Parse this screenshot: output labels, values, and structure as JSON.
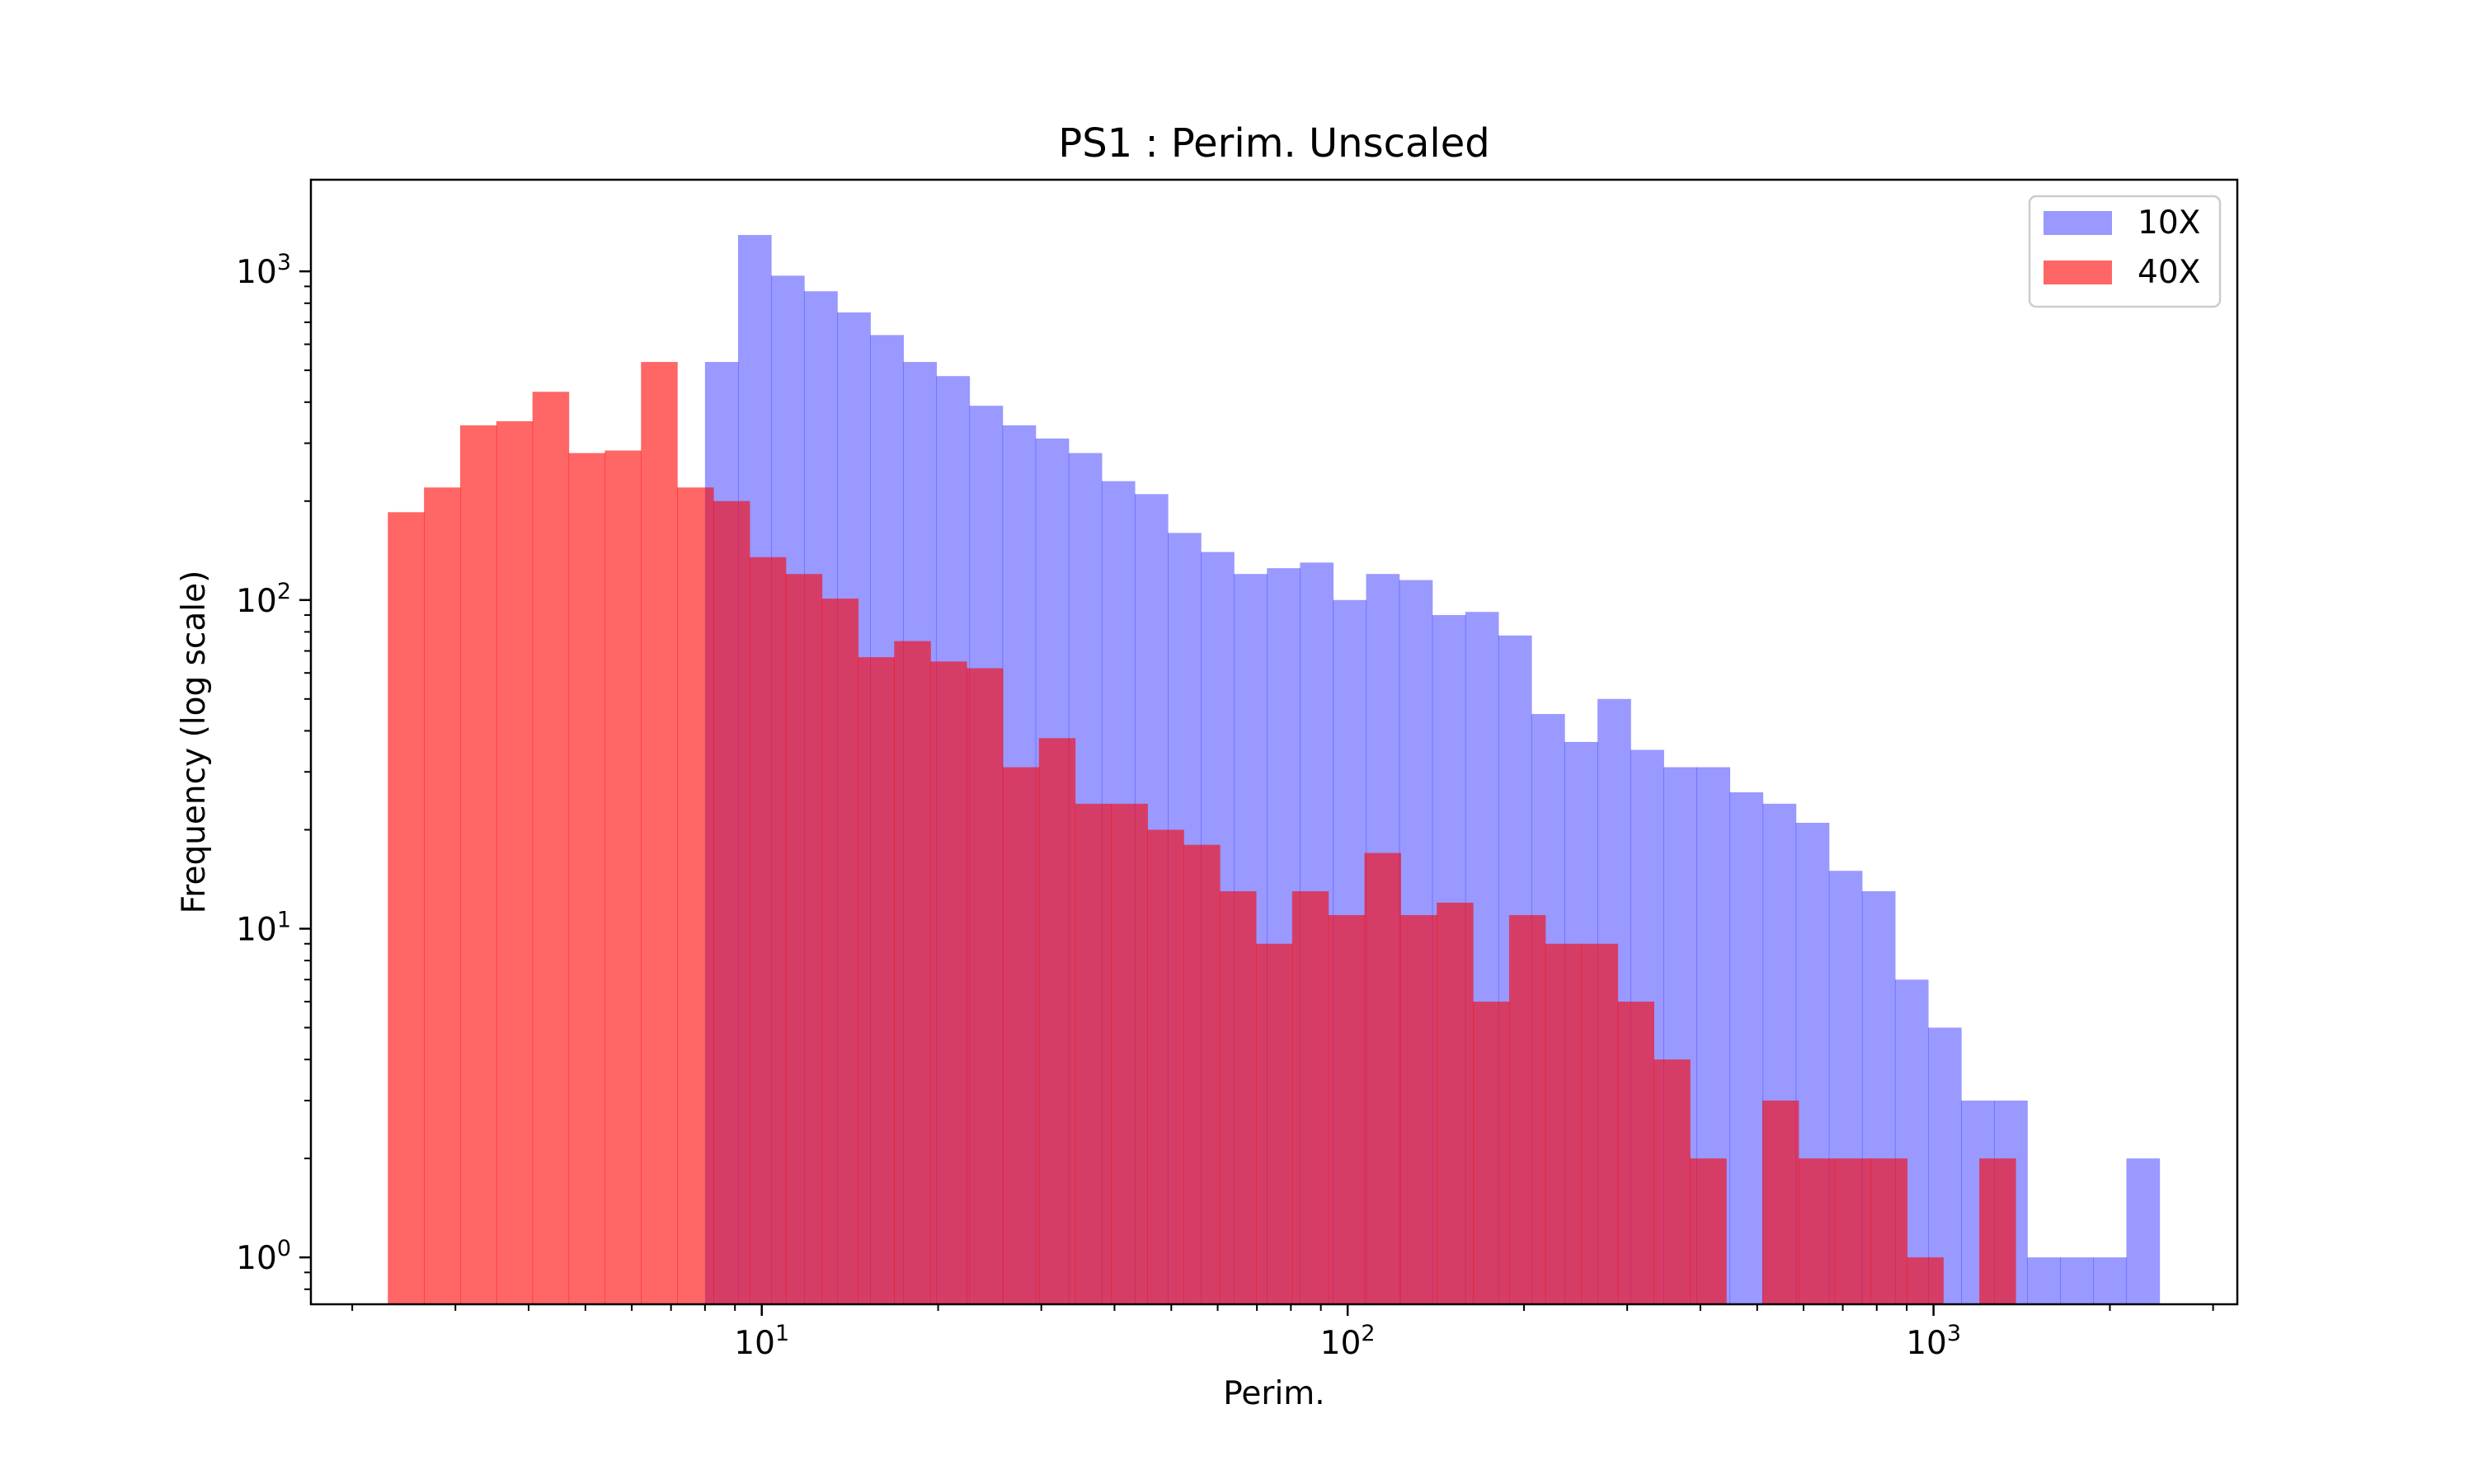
{
  "chart_data": {
    "type": "bar",
    "title": "PS1 : Perim. Unscaled",
    "xlabel": "Perim.",
    "ylabel": "Frequency (log scale)",
    "xscale": "log",
    "yscale": "log",
    "xlim": [
      1.7,
      3300
    ],
    "ylim": [
      0.72,
      1900
    ],
    "grid": false,
    "legend_position": "top-right",
    "x_ticks": [
      {
        "value": 10,
        "base": "10",
        "exp": "1"
      },
      {
        "value": 100,
        "base": "10",
        "exp": "2"
      },
      {
        "value": 1000,
        "base": "10",
        "exp": "3"
      }
    ],
    "y_ticks": [
      {
        "value": 1,
        "base": "10",
        "exp": "0"
      },
      {
        "value": 10,
        "base": "10",
        "exp": "1"
      },
      {
        "value": 100,
        "base": "10",
        "exp": "2"
      },
      {
        "value": 1000,
        "base": "10",
        "exp": "3"
      }
    ],
    "series": [
      {
        "name": "10X",
        "color": "#0000ff",
        "opacity": 0.4,
        "bin_start": 8.0,
        "bin_end": 2430,
        "counts": [
          530,
          1290,
          970,
          870,
          750,
          640,
          530,
          480,
          390,
          340,
          310,
          280,
          230,
          210,
          160,
          140,
          120,
          125,
          130,
          100,
          120,
          115,
          90,
          92,
          78,
          45,
          37,
          50,
          35,
          31,
          31,
          26,
          24,
          21,
          15,
          13,
          7,
          5,
          3,
          3,
          1,
          1,
          1,
          2
        ]
      },
      {
        "name": "40X",
        "color": "#ff0000",
        "opacity": 0.6,
        "bin_start": 2.3,
        "bin_end": 1380,
        "counts": [
          185,
          220,
          340,
          350,
          430,
          280,
          285,
          530,
          220,
          200,
          135,
          120,
          101,
          67,
          75,
          65,
          62,
          31,
          38,
          24,
          24,
          20,
          18,
          13,
          9,
          13,
          11,
          17,
          11,
          12,
          6,
          11,
          9,
          9,
          6,
          4,
          2,
          0,
          3,
          2,
          2,
          2,
          1,
          0,
          2
        ]
      }
    ]
  }
}
